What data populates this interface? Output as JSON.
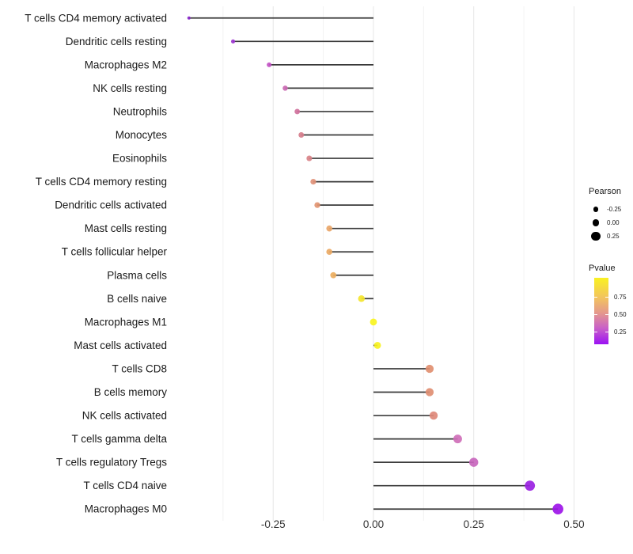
{
  "chart_data": {
    "type": "scatter",
    "variant": "horizontal-lollipop",
    "title": "",
    "xlabel": "",
    "ylabel": "",
    "grid": "vertical-major-and-minor-only",
    "legend_position": "right",
    "encoding": {
      "size": "Pearson",
      "color": "Pvalue"
    },
    "xlim": [
      -0.503,
      0.509
    ],
    "x_tick_labels": [
      "-0.25",
      "0.00",
      "0.25",
      "0.50"
    ],
    "x_tick_values": [
      -0.25,
      0.0,
      0.25,
      0.5
    ],
    "x_minor_values": [
      -0.375,
      -0.125,
      0.125,
      0.375
    ],
    "points": [
      {
        "label": "T cells CD4 memory activated",
        "pearson": -0.46,
        "color": "#8726c9"
      },
      {
        "label": "Dendritic cells resting",
        "pearson": -0.35,
        "color": "#9c35d0"
      },
      {
        "label": "Macrophages M2",
        "pearson": -0.26,
        "color": "#c253c4"
      },
      {
        "label": "NK cells resting",
        "pearson": -0.22,
        "color": "#ca68b2"
      },
      {
        "label": "Neutrophils",
        "pearson": -0.19,
        "color": "#d0719c"
      },
      {
        "label": "Monocytes",
        "pearson": -0.18,
        "color": "#d67e8c"
      },
      {
        "label": "Eosinophils",
        "pearson": -0.16,
        "color": "#d98389"
      },
      {
        "label": "T cells CD4 memory resting",
        "pearson": -0.15,
        "color": "#e19279"
      },
      {
        "label": "Dendritic cells activated",
        "pearson": -0.14,
        "color": "#e29572"
      },
      {
        "label": "Mast cells resting",
        "pearson": -0.11,
        "color": "#e9a669"
      },
      {
        "label": "T cells follicular helper",
        "pearson": -0.11,
        "color": "#eaa964"
      },
      {
        "label": "Plasma cells",
        "pearson": -0.1,
        "color": "#ecae5f"
      },
      {
        "label": "B cells naive",
        "pearson": -0.03,
        "color": "#f4e52e"
      },
      {
        "label": "Macrophages M1",
        "pearson": 0.0,
        "color": "#f8f41f"
      },
      {
        "label": "Mast cells activated",
        "pearson": 0.01,
        "color": "#f7f222"
      },
      {
        "label": "T cells CD8",
        "pearson": 0.14,
        "color": "#e18f70"
      },
      {
        "label": "B cells memory",
        "pearson": 0.14,
        "color": "#e08e72"
      },
      {
        "label": "NK cells activated",
        "pearson": 0.15,
        "color": "#de8979"
      },
      {
        "label": "T cells gamma delta",
        "pearson": 0.21,
        "color": "#cf6fb8"
      },
      {
        "label": "T cells regulatory  Tregs",
        "pearson": 0.25,
        "color": "#c866bd"
      },
      {
        "label": "T cells CD4 naive",
        "pearson": 0.39,
        "color": "#9a21e2"
      },
      {
        "label": "Macrophages M0",
        "pearson": 0.46,
        "color": "#9d15e8"
      }
    ],
    "legend": {
      "size": {
        "title": "Pearson",
        "entries": [
          {
            "label": "-0.25",
            "value": -0.25
          },
          {
            "label": "0.00",
            "value": 0.0
          },
          {
            "label": "0.25",
            "value": 0.25
          }
        ]
      },
      "color": {
        "title": "Pvalue",
        "tick_labels": [
          "0.75",
          "0.50",
          "0.25"
        ],
        "colorbar_tick_positions": [
          0.28,
          0.55,
          0.81
        ],
        "gradient_stops": [
          {
            "color": "#f9f121",
            "pos": 0
          },
          {
            "color": "#f2c35f",
            "pos": 30
          },
          {
            "color": "#e59a8b",
            "pos": 52
          },
          {
            "color": "#c95fc9",
            "pos": 76
          },
          {
            "color": "#9b12f3",
            "pos": 100
          }
        ]
      }
    }
  },
  "colors": {
    "background": "#ffffff",
    "stem": "#3a3a3a",
    "grid_major": "#e6e6e6",
    "grid_minor": "#f2f2f2",
    "axis_text": "#333333",
    "label_text": "#1a1a1a",
    "legend_dot": "#000000"
  }
}
